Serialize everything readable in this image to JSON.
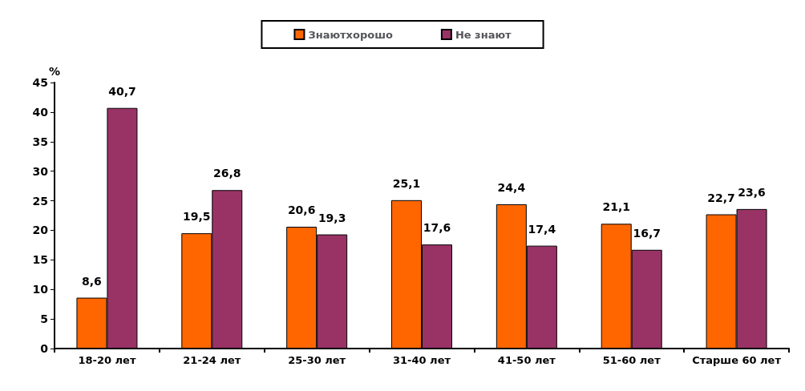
{
  "chart_data": {
    "type": "bar",
    "ylabel": "%",
    "categories": [
      "18-20 лет",
      "21-24 лет",
      "25-30 лет",
      "31-40 лет",
      "41-50 лет",
      "51-60 лет",
      "Старше 60 лет"
    ],
    "series": [
      {
        "name": "Знаютхорошо",
        "color": "#ff6600",
        "values": [
          8.6,
          19.5,
          20.6,
          25.1,
          24.4,
          21.1,
          22.7
        ],
        "value_labels": [
          "8,6",
          "19,5",
          "20,6",
          "25,1",
          "24,4",
          "21,1",
          "22,7"
        ]
      },
      {
        "name": "Не знают",
        "color": "#993366",
        "values": [
          40.7,
          26.8,
          19.3,
          17.6,
          17.4,
          16.7,
          23.6
        ],
        "value_labels": [
          "40,7",
          "26,8",
          "19,3",
          "17,6",
          "17,4",
          "16,7",
          "23,6"
        ]
      }
    ],
    "ylim": [
      0,
      45
    ],
    "yticks": [
      0,
      5,
      10,
      15,
      20,
      25,
      30,
      35,
      40,
      45
    ],
    "grid": false,
    "legend": "top"
  }
}
